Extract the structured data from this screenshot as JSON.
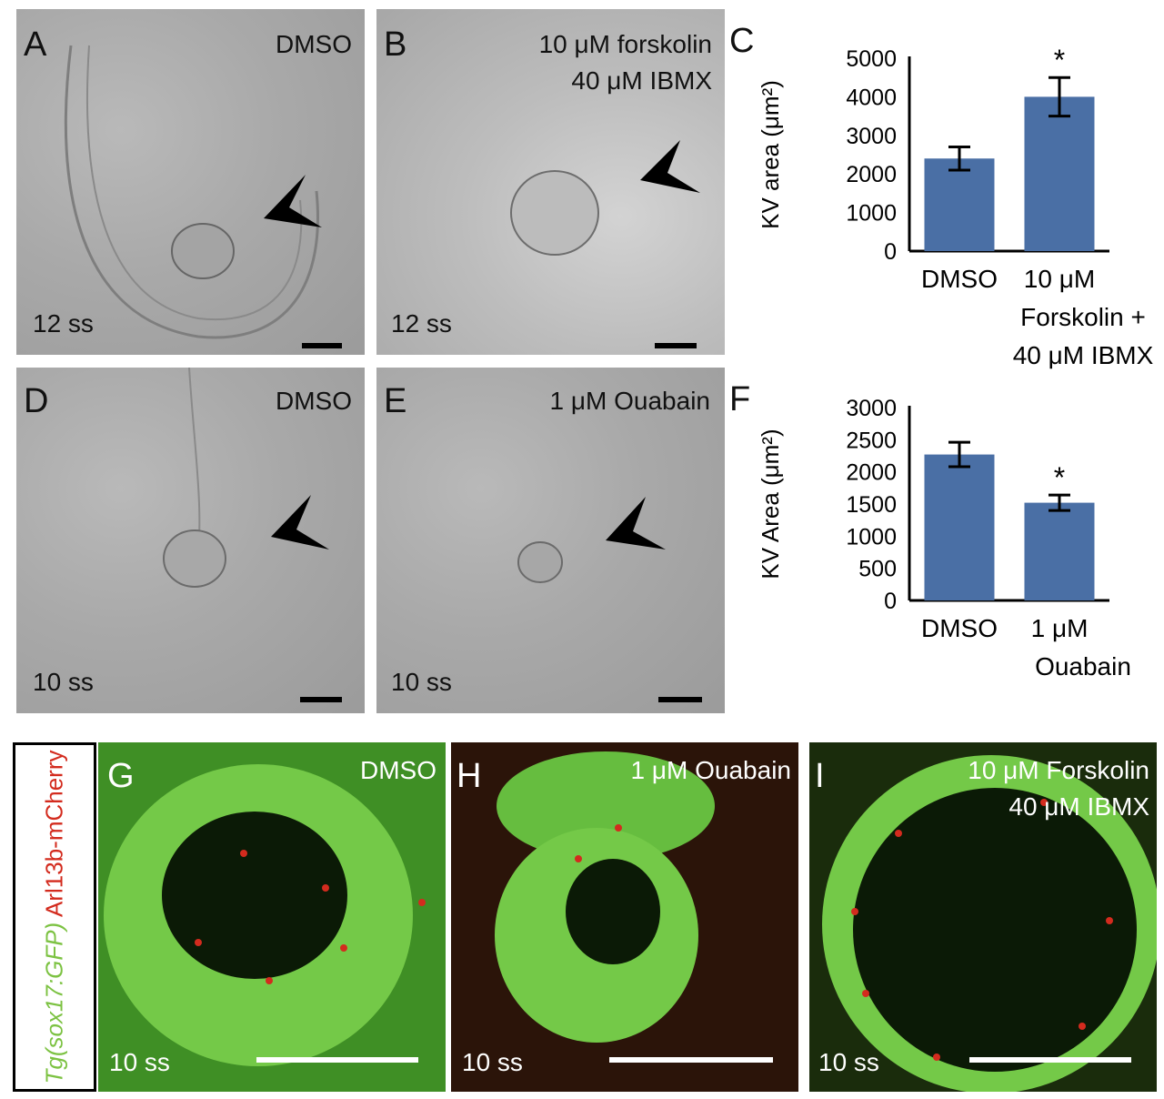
{
  "panels": {
    "A": {
      "label": "A",
      "condition": "DMSO",
      "stage": "12 ss"
    },
    "B": {
      "label": "B",
      "condition_line1": "10 μM forskolin",
      "condition_line2": "40 μM IBMX",
      "stage": "12 ss"
    },
    "D": {
      "label": "D",
      "condition": "DMSO",
      "stage": "10 ss"
    },
    "E": {
      "label": "E",
      "condition": "1 μM Ouabain",
      "stage": "10 ss"
    },
    "G": {
      "label": "G",
      "condition": "DMSO",
      "stage": "10 ss"
    },
    "H": {
      "label": "H",
      "condition": "1 μM Ouabain",
      "stage": "10 ss"
    },
    "I": {
      "label": "I",
      "condition_line1": "10 μM Forskolin",
      "condition_line2": "40 μM IBMX",
      "stage": "10 ss"
    }
  },
  "side_label": {
    "green": "Tg(sox17:GFP)",
    "red": "Arl13b-mCherry"
  },
  "colors": {
    "bar": "#4a6fa5",
    "gfp": "#7cc242",
    "mcherry": "#d32b1e"
  },
  "chart_data": [
    {
      "panel_label": "C",
      "type": "bar",
      "ylabel": "KV area (μm²)",
      "ylim": [
        0,
        5000
      ],
      "yticks": [
        0,
        1000,
        2000,
        3000,
        4000,
        5000
      ],
      "categories": [
        "DMSO",
        "10 μM Forskolin + 40 μM IBMX"
      ],
      "category_lines": [
        [
          "DMSO"
        ],
        [
          "10 μM",
          "Forskolin +",
          "40 μM IBMX"
        ]
      ],
      "values": [
        2400,
        4000
      ],
      "errors": [
        300,
        500
      ],
      "significance": [
        "",
        "*"
      ]
    },
    {
      "panel_label": "F",
      "type": "bar",
      "ylabel": "KV Area (μm²)",
      "ylim": [
        0,
        3000
      ],
      "yticks": [
        0,
        500,
        1000,
        1500,
        2000,
        2500,
        3000
      ],
      "categories": [
        "DMSO",
        "1 μM Ouabain"
      ],
      "category_lines": [
        [
          "DMSO"
        ],
        [
          "1 μM",
          "Ouabain"
        ]
      ],
      "values": [
        2270,
        1520
      ],
      "errors": [
        190,
        120
      ],
      "significance": [
        "",
        "*"
      ]
    }
  ]
}
